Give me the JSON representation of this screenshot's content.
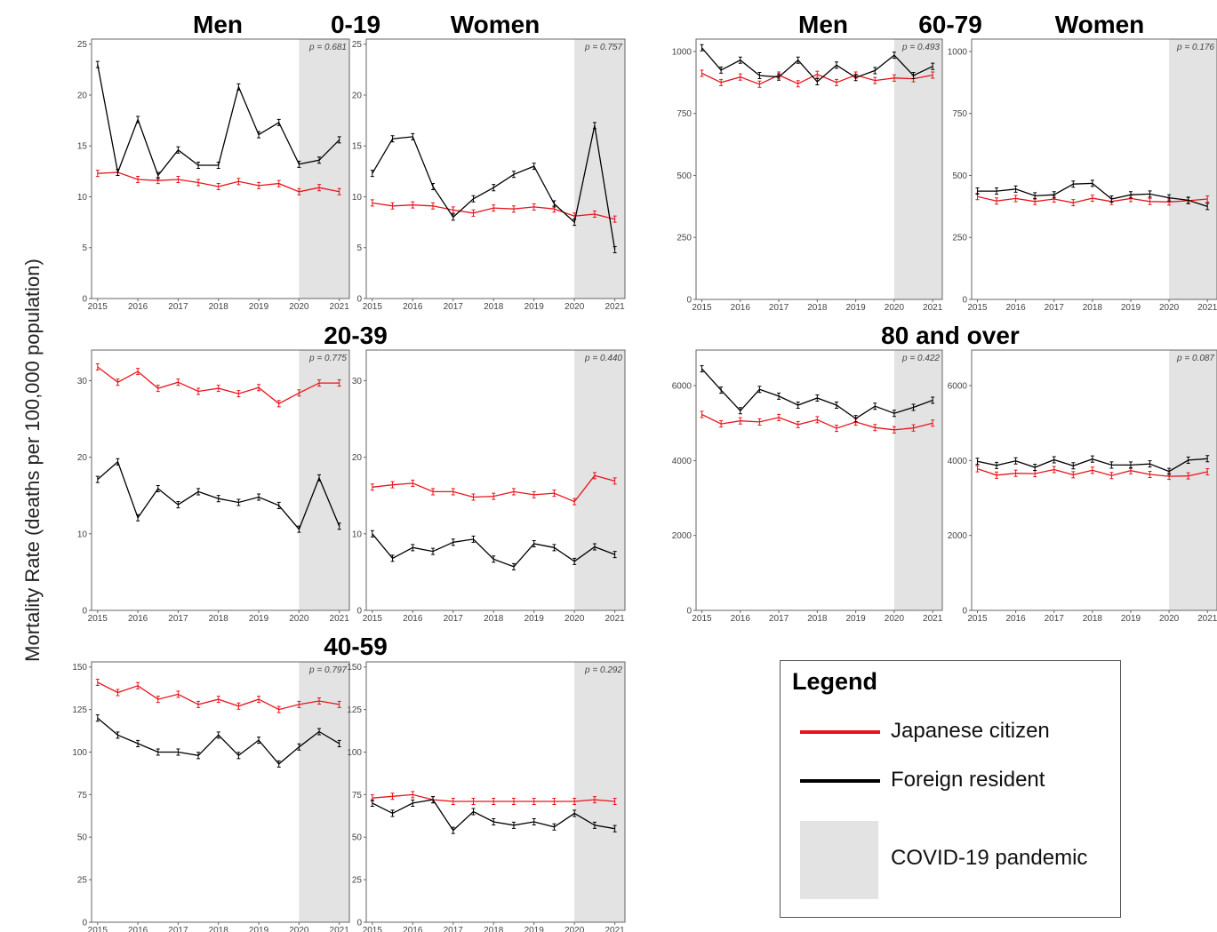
{
  "y_axis_label": "Mortality Rate (deaths per 100,000 population)",
  "colors": {
    "japanese": "#e8141c",
    "foreign": "#000000",
    "pandemic": "#e3e3e3"
  },
  "legend": {
    "title": "Legend",
    "japanese": "Japanese citizen",
    "foreign": "Foreign resident",
    "pandemic": "COVID-19 pandemic"
  },
  "groups": [
    {
      "label": "0-19"
    },
    {
      "label": "20-39"
    },
    {
      "label": "40-59"
    },
    {
      "label": "60-79"
    },
    {
      "label": "80 and over"
    }
  ],
  "column_headers": {
    "men": "Men",
    "women": "Women"
  },
  "chart_data": [
    {
      "type": "line",
      "group": "0-19",
      "sex": "Men",
      "x_ticks": [
        "2015",
        "2016",
        "2017",
        "2018",
        "2019",
        "2020",
        "2021"
      ],
      "y_ticks": [
        "0",
        "5",
        "10",
        "15",
        "20",
        "25"
      ],
      "ylim": [
        0,
        25.5
      ],
      "pandemic_start": 2020,
      "p_value": "p = 0.681",
      "series": [
        {
          "name": "Japanese citizen",
          "x": [
            2015,
            2015.5,
            2016,
            2016.5,
            2017,
            2017.5,
            2018,
            2018.5,
            2019,
            2019.5,
            2020,
            2020.5,
            2021
          ],
          "y": [
            12.3,
            12.4,
            11.7,
            11.6,
            11.7,
            11.4,
            11.0,
            11.5,
            11.1,
            11.3,
            10.5,
            10.9,
            10.5
          ]
        },
        {
          "name": "Foreign resident",
          "x": [
            2015,
            2015.5,
            2016,
            2016.5,
            2017,
            2017.5,
            2018,
            2018.5,
            2019,
            2019.5,
            2020,
            2020.5,
            2021
          ],
          "y": [
            23.0,
            12.4,
            17.6,
            12.1,
            14.6,
            13.1,
            13.1,
            20.8,
            16.1,
            17.3,
            13.2,
            13.6,
            15.6
          ]
        }
      ]
    },
    {
      "type": "line",
      "group": "0-19",
      "sex": "Women",
      "x_ticks": [
        "2015",
        "2016",
        "2017",
        "2018",
        "2019",
        "2020",
        "2021"
      ],
      "y_ticks": [
        "0",
        "5",
        "10",
        "15",
        "20",
        "25"
      ],
      "ylim": [
        0,
        25.5
      ],
      "pandemic_start": 2020,
      "p_value": "p = 0.757",
      "series": [
        {
          "name": "Japanese citizen",
          "x": [
            2015,
            2015.5,
            2016,
            2016.5,
            2017,
            2017.5,
            2018,
            2018.5,
            2019,
            2019.5,
            2020,
            2020.5,
            2021
          ],
          "y": [
            9.4,
            9.1,
            9.2,
            9.1,
            8.7,
            8.4,
            8.9,
            8.8,
            9.0,
            8.8,
            8.1,
            8.3,
            7.8
          ]
        },
        {
          "name": "Foreign resident",
          "x": [
            2015,
            2015.5,
            2016,
            2016.5,
            2017,
            2017.5,
            2018,
            2018.5,
            2019,
            2019.5,
            2020,
            2020.5,
            2021
          ],
          "y": [
            12.3,
            15.7,
            15.9,
            11.0,
            8.0,
            9.8,
            10.9,
            12.2,
            13.0,
            9.3,
            7.5,
            17.0,
            4.8
          ]
        }
      ]
    },
    {
      "type": "line",
      "group": "20-39",
      "sex": "Men",
      "x_ticks": [
        "2015",
        "2016",
        "2017",
        "2018",
        "2019",
        "2020",
        "2021"
      ],
      "y_ticks": [
        "0",
        "10",
        "20",
        "30"
      ],
      "ylim": [
        0,
        34
      ],
      "pandemic_start": 2020,
      "p_value": "p = 0.775",
      "series": [
        {
          "name": "Japanese citizen",
          "x": [
            2015,
            2015.5,
            2016,
            2016.5,
            2017,
            2017.5,
            2018,
            2018.5,
            2019,
            2019.5,
            2020,
            2020.5,
            2021
          ],
          "y": [
            31.8,
            29.8,
            31.2,
            29.0,
            29.8,
            28.6,
            29.0,
            28.3,
            29.1,
            27.0,
            28.4,
            29.7,
            29.7
          ]
        },
        {
          "name": "Foreign resident",
          "x": [
            2015,
            2015.5,
            2016,
            2016.5,
            2017,
            2017.5,
            2018,
            2018.5,
            2019,
            2019.5,
            2020,
            2020.5,
            2021
          ],
          "y": [
            17.1,
            19.4,
            12.1,
            15.9,
            13.8,
            15.5,
            14.6,
            14.1,
            14.8,
            13.7,
            10.6,
            17.3,
            11.0
          ]
        }
      ]
    },
    {
      "type": "line",
      "group": "20-39",
      "sex": "Women",
      "x_ticks": [
        "2015",
        "2016",
        "2017",
        "2018",
        "2019",
        "2020",
        "2021"
      ],
      "y_ticks": [
        "0",
        "10",
        "20",
        "30"
      ],
      "ylim": [
        0,
        34
      ],
      "pandemic_start": 2020,
      "p_value": "p = 0.440",
      "series": [
        {
          "name": "Japanese citizen",
          "x": [
            2015,
            2015.5,
            2016,
            2016.5,
            2017,
            2017.5,
            2018,
            2018.5,
            2019,
            2019.5,
            2020,
            2020.5,
            2021
          ],
          "y": [
            16.1,
            16.4,
            16.6,
            15.5,
            15.5,
            14.8,
            14.9,
            15.5,
            15.1,
            15.3,
            14.2,
            17.6,
            16.9
          ]
        },
        {
          "name": "Foreign resident",
          "x": [
            2015,
            2015.5,
            2016,
            2016.5,
            2017,
            2017.5,
            2018,
            2018.5,
            2019,
            2019.5,
            2020,
            2020.5,
            2021
          ],
          "y": [
            10.0,
            6.8,
            8.2,
            7.7,
            8.9,
            9.3,
            6.7,
            5.7,
            8.7,
            8.2,
            6.4,
            8.3,
            7.3
          ]
        }
      ]
    },
    {
      "type": "line",
      "group": "40-59",
      "sex": "Men",
      "x_ticks": [
        "2015",
        "2016",
        "2017",
        "2018",
        "2019",
        "2020",
        "2021"
      ],
      "y_ticks": [
        "0",
        "25",
        "50",
        "75",
        "100",
        "125",
        "150"
      ],
      "ylim": [
        0,
        153
      ],
      "pandemic_start": 2020,
      "p_value": "p = 0.797",
      "series": [
        {
          "name": "Japanese citizen",
          "x": [
            2015,
            2015.5,
            2016,
            2016.5,
            2017,
            2017.5,
            2018,
            2018.5,
            2019,
            2019.5,
            2020,
            2020.5,
            2021
          ],
          "y": [
            141,
            135,
            139,
            131,
            134,
            128,
            131,
            127,
            131,
            125,
            128,
            130,
            128
          ]
        },
        {
          "name": "Foreign resident",
          "x": [
            2015,
            2015.5,
            2016,
            2016.5,
            2017,
            2017.5,
            2018,
            2018.5,
            2019,
            2019.5,
            2020,
            2020.5,
            2021
          ],
          "y": [
            120,
            110,
            105,
            100,
            100,
            98,
            110,
            98,
            107,
            93,
            103,
            112,
            105
          ]
        }
      ]
    },
    {
      "type": "line",
      "group": "40-59",
      "sex": "Women",
      "x_ticks": [
        "2015",
        "2016",
        "2017",
        "2018",
        "2019",
        "2020",
        "2021"
      ],
      "y_ticks": [
        "0",
        "25",
        "50",
        "75",
        "100",
        "125",
        "150"
      ],
      "ylim": [
        0,
        153
      ],
      "pandemic_start": 2020,
      "p_value": "p = 0.292",
      "series": [
        {
          "name": "Japanese citizen",
          "x": [
            2015,
            2015.5,
            2016,
            2016.5,
            2017,
            2017.5,
            2018,
            2018.5,
            2019,
            2019.5,
            2020,
            2020.5,
            2021
          ],
          "y": [
            73,
            74,
            75,
            72,
            71,
            71,
            71,
            71,
            71,
            71,
            71,
            72,
            71
          ]
        },
        {
          "name": "Foreign resident",
          "x": [
            2015,
            2015.5,
            2016,
            2016.5,
            2017,
            2017.5,
            2018,
            2018.5,
            2019,
            2019.5,
            2020,
            2020.5,
            2021
          ],
          "y": [
            70,
            64,
            70,
            72,
            54,
            65,
            59,
            57,
            59,
            56,
            64,
            57,
            55
          ]
        }
      ]
    },
    {
      "type": "line",
      "group": "60-79",
      "sex": "Men",
      "x_ticks": [
        "2015",
        "2016",
        "2017",
        "2018",
        "2019",
        "2020",
        "2021"
      ],
      "y_ticks": [
        "0",
        "250",
        "500",
        "750",
        "1000"
      ],
      "ylim": [
        0,
        1050
      ],
      "pandemic_start": 2020,
      "p_value": "p = 0.493",
      "series": [
        {
          "name": "Japanese citizen",
          "x": [
            2015,
            2015.5,
            2016,
            2016.5,
            2017,
            2017.5,
            2018,
            2018.5,
            2019,
            2019.5,
            2020,
            2020.5,
            2021
          ],
          "y": [
            912,
            875,
            897,
            868,
            905,
            870,
            908,
            875,
            905,
            883,
            893,
            890,
            905
          ]
        },
        {
          "name": "Foreign resident",
          "x": [
            2015,
            2015.5,
            2016,
            2016.5,
            2017,
            2017.5,
            2018,
            2018.5,
            2019,
            2019.5,
            2020,
            2020.5,
            2021
          ],
          "y": [
            1015,
            925,
            965,
            903,
            897,
            965,
            878,
            945,
            895,
            923,
            985,
            903,
            940
          ]
        }
      ]
    },
    {
      "type": "line",
      "group": "60-79",
      "sex": "Women",
      "x_ticks": [
        "2015",
        "2016",
        "2017",
        "2018",
        "2019",
        "2020",
        "2021"
      ],
      "y_ticks": [
        "0",
        "250",
        "500",
        "750",
        "1000"
      ],
      "ylim": [
        0,
        1050
      ],
      "pandemic_start": 2020,
      "p_value": "p = 0.176",
      "series": [
        {
          "name": "Japanese citizen",
          "x": [
            2015,
            2015.5,
            2016,
            2016.5,
            2017,
            2017.5,
            2018,
            2018.5,
            2019,
            2019.5,
            2020,
            2020.5,
            2021
          ],
          "y": [
            415,
            397,
            407,
            395,
            405,
            390,
            408,
            395,
            407,
            395,
            393,
            398,
            405
          ]
        },
        {
          "name": "Foreign resident",
          "x": [
            2015,
            2015.5,
            2016,
            2016.5,
            2017,
            2017.5,
            2018,
            2018.5,
            2019,
            2019.5,
            2020,
            2020.5,
            2021
          ],
          "y": [
            437,
            437,
            445,
            418,
            422,
            465,
            468,
            405,
            422,
            425,
            410,
            400,
            375
          ]
        }
      ]
    },
    {
      "type": "line",
      "group": "80 and over",
      "sex": "Men",
      "x_ticks": [
        "2015",
        "2016",
        "2017",
        "2018",
        "2019",
        "2020",
        "2021"
      ],
      "y_ticks": [
        "0",
        "2000",
        "4000",
        "6000"
      ],
      "ylim": [
        0,
        6950
      ],
      "pandemic_start": 2020,
      "p_value": "p = 0.422",
      "series": [
        {
          "name": "Japanese citizen",
          "x": [
            2015,
            2015.5,
            2016,
            2016.5,
            2017,
            2017.5,
            2018,
            2018.5,
            2019,
            2019.5,
            2020,
            2020.5,
            2021
          ],
          "y": [
            5230,
            4980,
            5060,
            5030,
            5150,
            4960,
            5090,
            4860,
            5030,
            4880,
            4820,
            4870,
            5000
          ]
        },
        {
          "name": "Foreign resident",
          "x": [
            2015,
            2015.5,
            2016,
            2016.5,
            2017,
            2017.5,
            2018,
            2018.5,
            2019,
            2019.5,
            2020,
            2020.5,
            2021
          ],
          "y": [
            6450,
            5880,
            5330,
            5900,
            5720,
            5480,
            5670,
            5480,
            5120,
            5450,
            5260,
            5420,
            5610
          ]
        }
      ]
    },
    {
      "type": "line",
      "group": "80 and over",
      "sex": "Women",
      "x_ticks": [
        "2015",
        "2016",
        "2017",
        "2018",
        "2019",
        "2020",
        "2021"
      ],
      "y_ticks": [
        "0",
        "2000",
        "4000",
        "6000"
      ],
      "ylim": [
        0,
        6950
      ],
      "pandemic_start": 2020,
      "p_value": "p = 0.087",
      "series": [
        {
          "name": "Japanese citizen",
          "x": [
            2015,
            2015.5,
            2016,
            2016.5,
            2017,
            2017.5,
            2018,
            2018.5,
            2019,
            2019.5,
            2020,
            2020.5,
            2021
          ],
          "y": [
            3780,
            3610,
            3660,
            3650,
            3760,
            3620,
            3740,
            3600,
            3730,
            3630,
            3580,
            3590,
            3700
          ]
        },
        {
          "name": "Foreign resident",
          "x": [
            2015,
            2015.5,
            2016,
            2016.5,
            2017,
            2017.5,
            2018,
            2018.5,
            2019,
            2019.5,
            2020,
            2020.5,
            2021
          ],
          "y": [
            3980,
            3870,
            3990,
            3820,
            4020,
            3860,
            4040,
            3880,
            3880,
            3910,
            3710,
            4010,
            4050
          ]
        }
      ]
    }
  ]
}
